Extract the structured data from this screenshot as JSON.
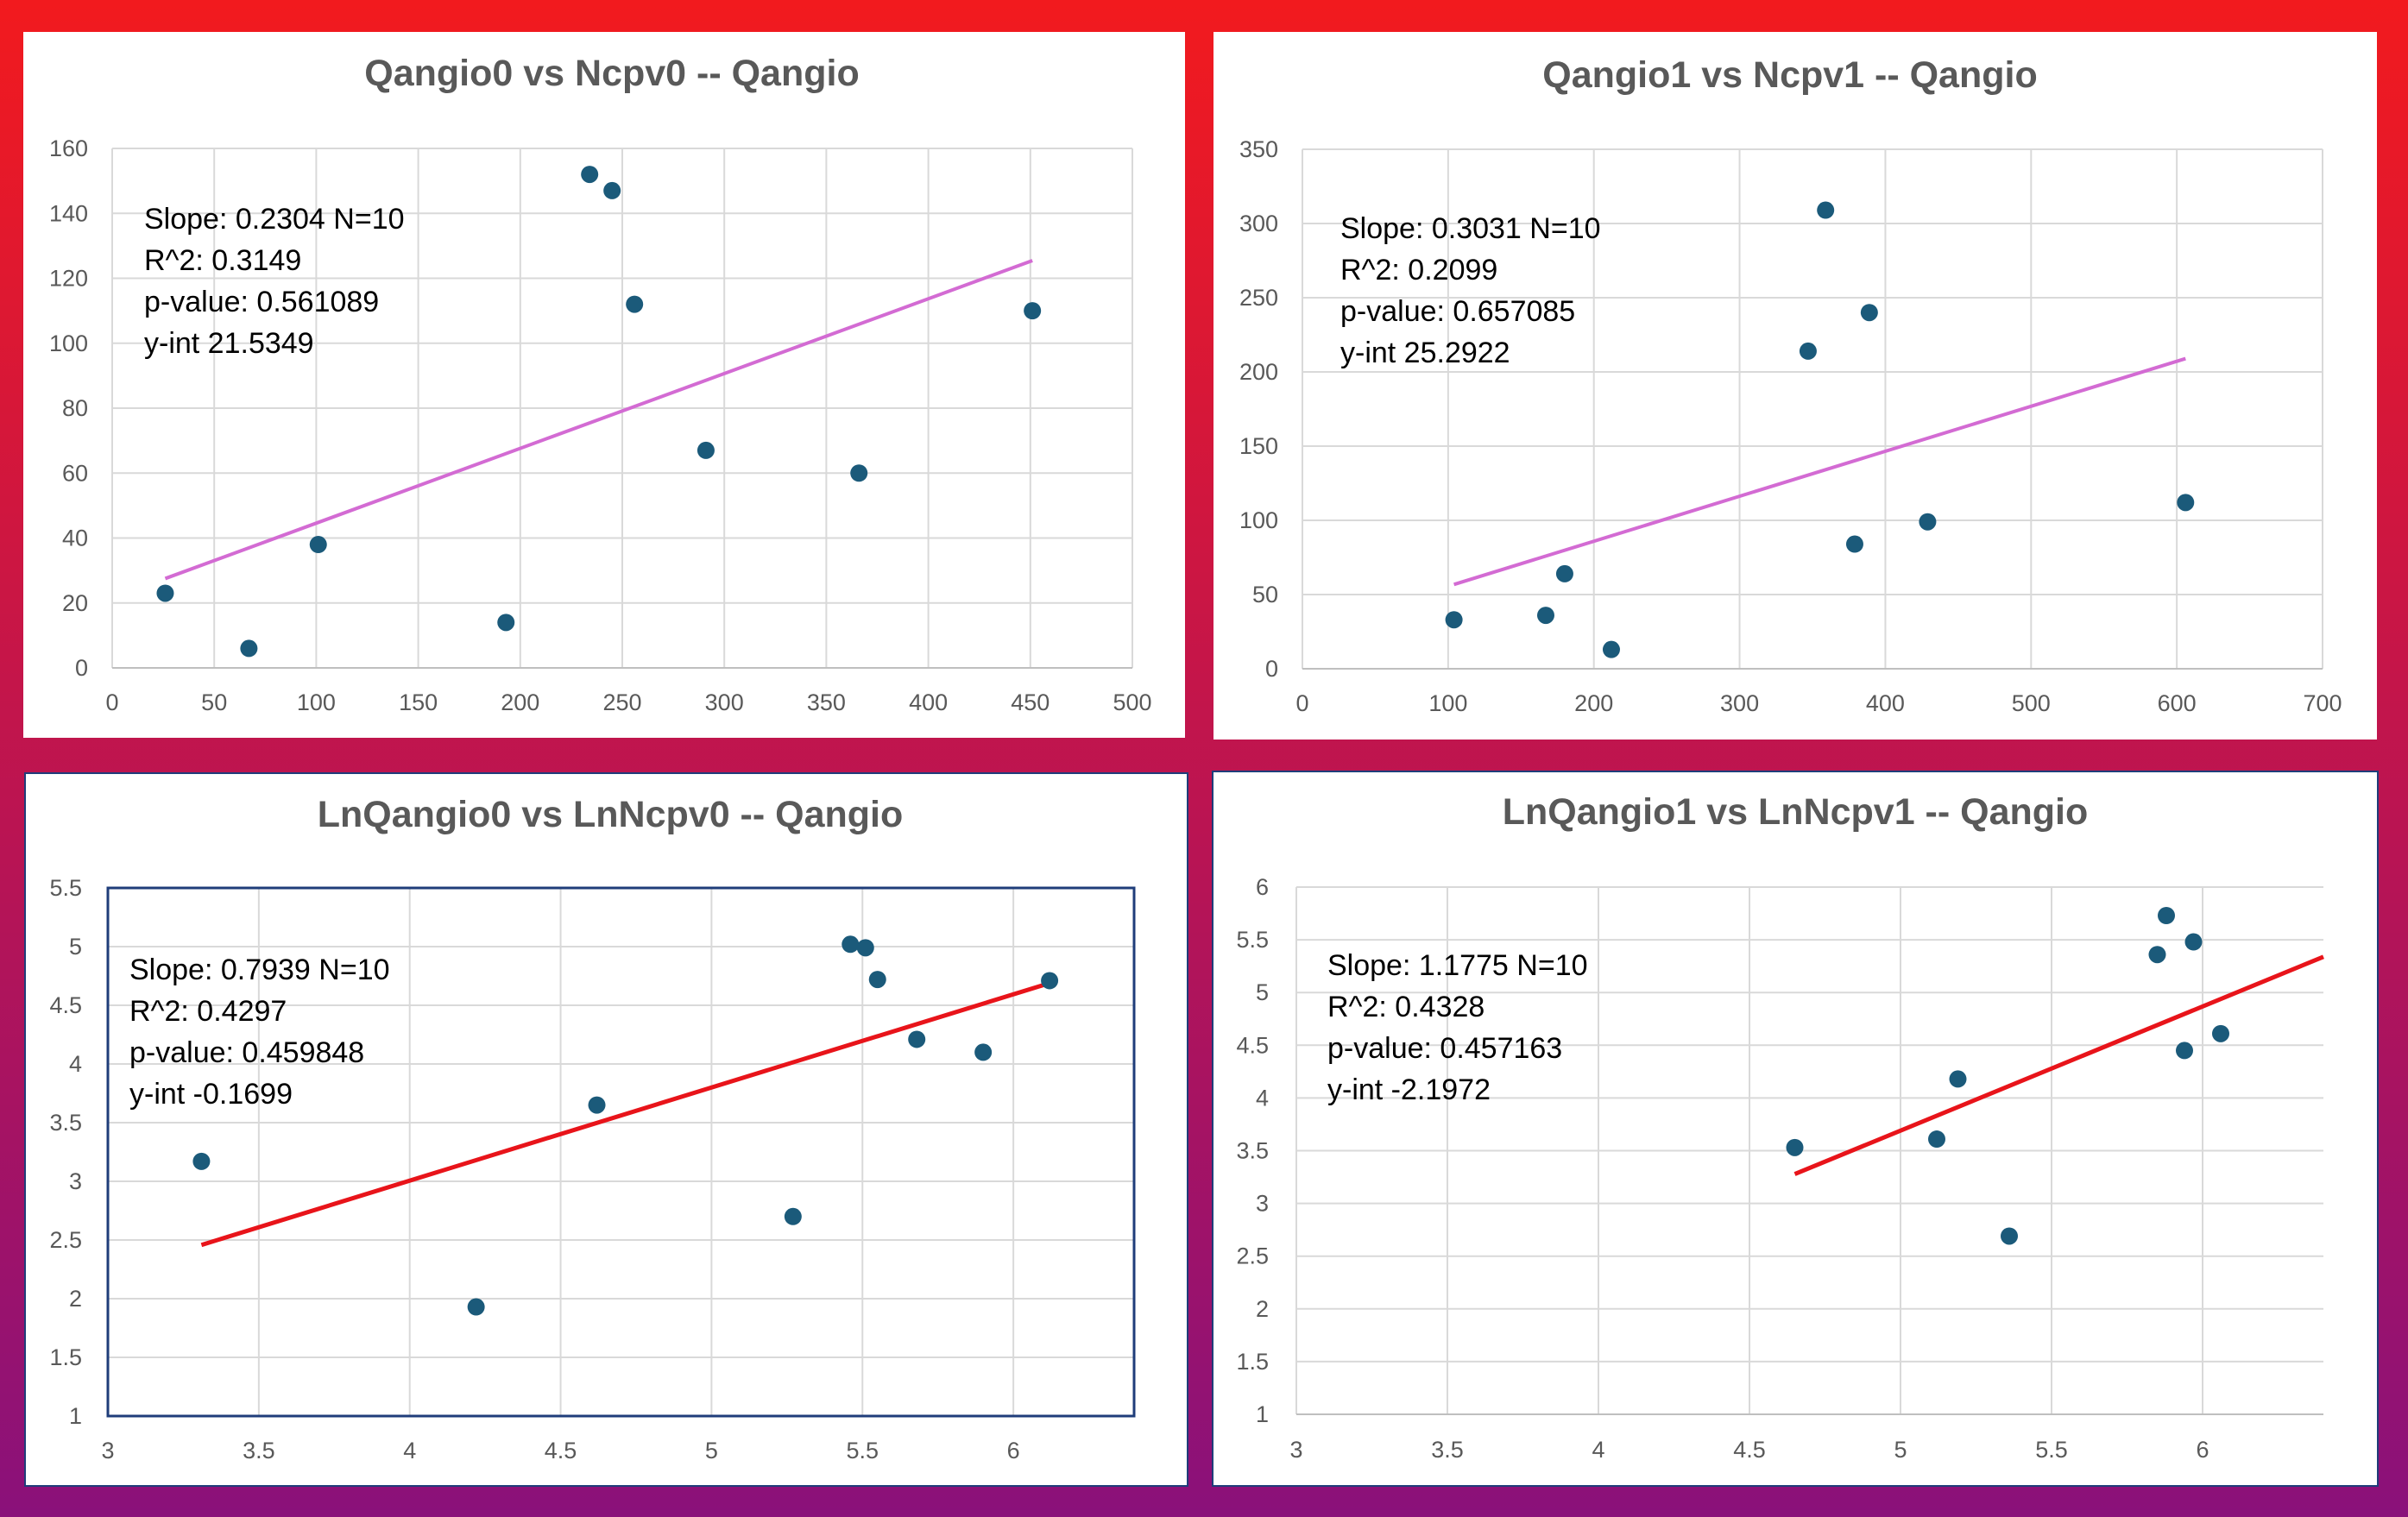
{
  "colors": {
    "marker": "#1b5a7a",
    "trend_pink": "#d36bd3",
    "trend_red": "#e8141a",
    "grid": "#d9d9d9",
    "text": "#595959"
  },
  "chart_data": [
    {
      "type": "scatter",
      "title": "Qangio0 vs Ncpv0  -- Qangio",
      "x": [
        26,
        67,
        101,
        193,
        234,
        245,
        256,
        291,
        366,
        451
      ],
      "y": [
        23,
        6,
        38,
        14,
        152,
        147,
        112,
        67,
        60,
        110
      ],
      "xlim": [
        0,
        500
      ],
      "ylim": [
        0,
        160
      ],
      "xticks": [
        0,
        50,
        100,
        150,
        200,
        250,
        300,
        350,
        400,
        450,
        500
      ],
      "yticks": [
        0,
        20,
        40,
        60,
        80,
        100,
        120,
        140,
        160
      ],
      "grid": true,
      "trendline": {
        "x0": 26,
        "x1": 451,
        "slope": 0.2304,
        "intercept": 21.5349,
        "color": "pink"
      },
      "annotation": [
        "Slope: 0.2304 N=10",
        "R^2: 0.3149",
        " p-value: 0.561089",
        "y-int 21.5349"
      ]
    },
    {
      "type": "scatter",
      "title": "Qangio1 vs Ncpv1  -- Qangio",
      "x": [
        104,
        167,
        180,
        212,
        347,
        359,
        379,
        389,
        429,
        606
      ],
      "y": [
        33,
        36,
        64,
        13,
        214,
        309,
        84,
        240,
        99,
        112
      ],
      "xlim": [
        0,
        700
      ],
      "ylim": [
        0,
        350
      ],
      "xticks": [
        0,
        100,
        200,
        300,
        400,
        500,
        600,
        700
      ],
      "yticks": [
        0,
        50,
        100,
        150,
        200,
        250,
        300,
        350
      ],
      "grid": true,
      "trendline": {
        "x0": 104,
        "x1": 606,
        "slope": 0.3031,
        "intercept": 25.2922,
        "color": "pink"
      },
      "annotation": [
        "Slope: 0.3031 N=10",
        "R^2: 0.2099",
        "p-value: 0.657085",
        "y-int 25.2922"
      ]
    },
    {
      "type": "scatter",
      "title": "LnQangio0 vs LnNcpv0  -- Qangio",
      "x": [
        3.31,
        4.22,
        4.62,
        5.27,
        5.46,
        5.51,
        5.55,
        5.68,
        5.9,
        6.12
      ],
      "y": [
        3.17,
        1.93,
        3.65,
        2.7,
        5.02,
        4.99,
        4.72,
        4.21,
        4.1,
        4.71
      ],
      "xlim": [
        3,
        6.4
      ],
      "ylim": [
        1,
        5.5
      ],
      "xticks": [
        "3",
        "3.5",
        "4",
        "4.5",
        "5",
        "5.5",
        "6"
      ],
      "yticks": [
        "1",
        "1.5",
        "2",
        "2.5",
        "3",
        "3.5",
        "4",
        "4.5",
        "5",
        "5.5"
      ],
      "grid": true,
      "trendline": {
        "x0": 3.31,
        "x1": 6.12,
        "slope": 0.7939,
        "intercept": -0.1699,
        "color": "red"
      },
      "annotation": [
        "Slope: 0.7939 N=10",
        "R^2: 0.4297",
        "p-value: 0.459848",
        "y-int -0.1699"
      ]
    },
    {
      "type": "scatter",
      "title": "LnQangio1 vs LnNcpv1  -- Qangio",
      "x": [
        4.65,
        5.12,
        5.19,
        5.36,
        5.85,
        5.88,
        5.94,
        5.97,
        6.06
      ],
      "y": [
        3.53,
        3.61,
        4.18,
        2.69,
        5.36,
        5.73,
        4.45,
        5.48,
        4.61
      ],
      "xlim": [
        3,
        6.4
      ],
      "ylim": [
        1,
        6
      ],
      "xticks": [
        "3",
        "3.5",
        "4",
        "4.5",
        "5",
        "5.5",
        "6"
      ],
      "yticks": [
        "1",
        "1.5",
        "2",
        "2.5",
        "3",
        "3.5",
        "4",
        "4.5",
        "5",
        "5.5",
        "6"
      ],
      "grid": true,
      "trendline": {
        "x0": 4.65,
        "x1": 6.4,
        "slope": 1.1775,
        "intercept": -2.1972,
        "color": "red"
      },
      "annotation": [
        "Slope: 1.1775 N=10",
        "R^2: 0.4328",
        "p-value: 0.457163",
        "y-int -2.1972"
      ]
    }
  ]
}
